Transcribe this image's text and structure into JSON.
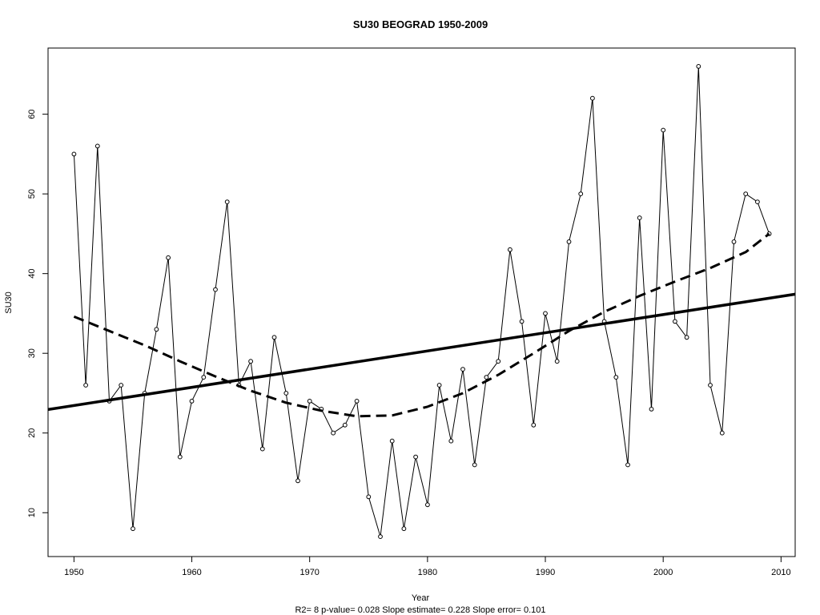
{
  "chart_data": {
    "type": "line",
    "title": "SU30   BEOGRAD 1950-2009",
    "xlabel": "Year",
    "ylabel": "SU30",
    "footnote": "R2= 8  p-value= 0.028  Slope estimate= 0.228  Slope error= 0.101",
    "xlim": [
      1947.8,
      2011.2
    ],
    "ylim": [
      4.5,
      68.3
    ],
    "xticks": [
      1950,
      1960,
      1970,
      1980,
      1990,
      2000,
      2010
    ],
    "yticks": [
      10,
      20,
      30,
      40,
      50,
      60
    ],
    "grid": false,
    "series": [
      {
        "style": "line-with-open-circles",
        "x": [
          1950,
          1951,
          1952,
          1953,
          1954,
          1955,
          1956,
          1957,
          1958,
          1959,
          1960,
          1961,
          1962,
          1963,
          1964,
          1965,
          1966,
          1967,
          1968,
          1969,
          1970,
          1971,
          1972,
          1973,
          1974,
          1975,
          1976,
          1977,
          1978,
          1979,
          1980,
          1981,
          1982,
          1983,
          1984,
          1985,
          1986,
          1987,
          1988,
          1989,
          1990,
          1991,
          1992,
          1993,
          1994,
          1995,
          1996,
          1997,
          1998,
          1999,
          2000,
          2001,
          2002,
          2003,
          2004,
          2005,
          2006,
          2007,
          2008,
          2009
        ],
        "values": [
          55,
          26,
          56,
          24,
          26,
          8,
          25,
          33,
          42,
          17,
          24,
          27,
          38,
          49,
          26,
          29,
          18,
          32,
          25,
          14,
          24,
          23,
          20,
          21,
          24,
          12,
          7,
          19,
          8,
          17,
          11,
          26,
          19,
          28,
          16,
          27,
          29,
          43,
          34,
          21,
          35,
          29,
          44,
          50,
          62,
          34,
          27,
          16,
          47,
          23,
          58,
          34,
          32,
          66,
          26,
          20,
          44,
          50,
          49,
          45
        ]
      },
      {
        "style": "solid-trend-line",
        "x": [
          1947.8,
          2011.2
        ],
        "values": [
          22.95,
          37.41
        ]
      },
      {
        "style": "dashed-smooth-curve",
        "x": [
          1950,
          1953,
          1956,
          1959,
          1962,
          1965,
          1968,
          1971,
          1974,
          1977,
          1980,
          1983,
          1986,
          1989,
          1992,
          1995,
          1998,
          2001,
          2004,
          2007,
          2009
        ],
        "values": [
          34.6,
          32.8,
          31.0,
          29.0,
          27.1,
          25.3,
          23.8,
          22.8,
          22.1,
          22.2,
          23.3,
          25.0,
          27.3,
          30.0,
          32.8,
          35.2,
          37.2,
          39.0,
          40.7,
          42.7,
          45.0
        ]
      }
    ]
  }
}
